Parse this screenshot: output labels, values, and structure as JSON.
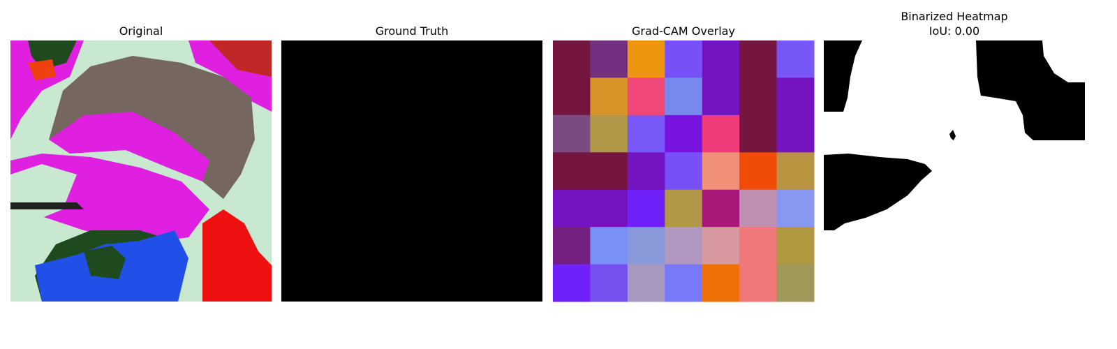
{
  "panels": [
    {
      "title_lines": [
        "Original"
      ]
    },
    {
      "title_lines": [
        "Ground Truth"
      ]
    },
    {
      "title_lines": [
        "Grad-CAM Overlay"
      ]
    },
    {
      "title_lines": [
        "Binarized Heatmap",
        "IoU: 0.00"
      ]
    }
  ]
}
